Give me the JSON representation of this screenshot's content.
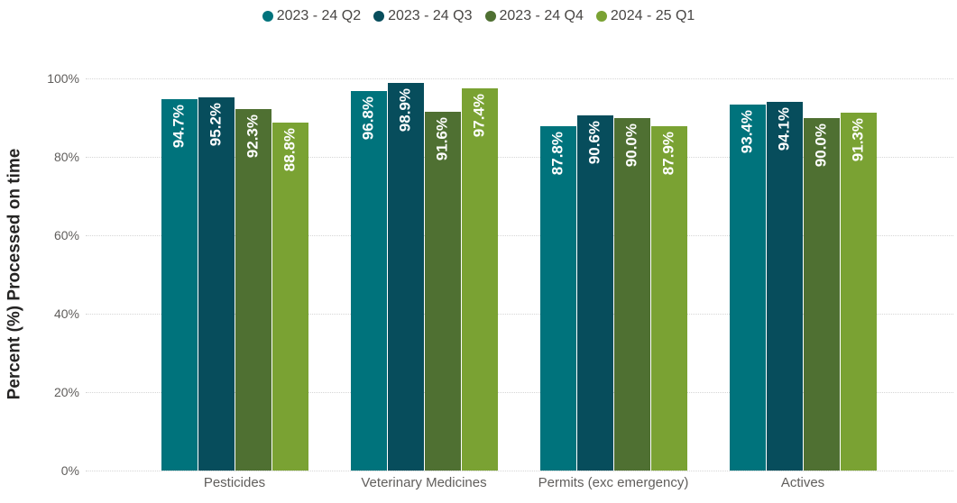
{
  "colors": {
    "background": "#FFFFFF",
    "gridline": "#D6D6D6",
    "tick_text": "#605E5C",
    "category_text": "#605E5C",
    "legend_text": "#484644",
    "axis_title_text": "#252423",
    "bar_label_text": "#FFFFFF"
  },
  "chart_data": {
    "type": "bar",
    "ylabel": "Percent (%) Processed on time",
    "xlabel": "",
    "ylim": [
      0,
      100
    ],
    "yticks": [
      0,
      20,
      40,
      60,
      80,
      100
    ],
    "ytick_labels": [
      "0%",
      "20%",
      "40%",
      "60%",
      "80%",
      "100%"
    ],
    "grid": "horizontal-dotted",
    "legend_position": "top-center",
    "categories": [
      "Pesticides",
      "Veterinary Medicines",
      "Permits (exc emergency)",
      "Actives"
    ],
    "series": [
      {
        "name": "2023 - 24 Q2",
        "color": "#00737C",
        "values": [
          94.7,
          96.8,
          87.8,
          93.4
        ],
        "value_labels": [
          "94.7%",
          "96.8%",
          "87.8%",
          "93.4%"
        ]
      },
      {
        "name": "2023 - 24 Q3",
        "color": "#074D5C",
        "values": [
          95.2,
          98.9,
          90.6,
          94.1
        ],
        "value_labels": [
          "95.2%",
          "98.9%",
          "90.6%",
          "94.1%"
        ]
      },
      {
        "name": "2023 - 24 Q4",
        "color": "#4F7032",
        "values": [
          92.3,
          91.6,
          90.0,
          90.0
        ],
        "value_labels": [
          "92.3%",
          "91.6%",
          "90.0%",
          "90.0%"
        ]
      },
      {
        "name": "2024 - 25 Q1",
        "color": "#7AA233",
        "values": [
          88.8,
          97.4,
          87.9,
          91.3
        ],
        "value_labels": [
          "88.8%",
          "97.4%",
          "87.9%",
          "91.3%"
        ]
      }
    ]
  }
}
